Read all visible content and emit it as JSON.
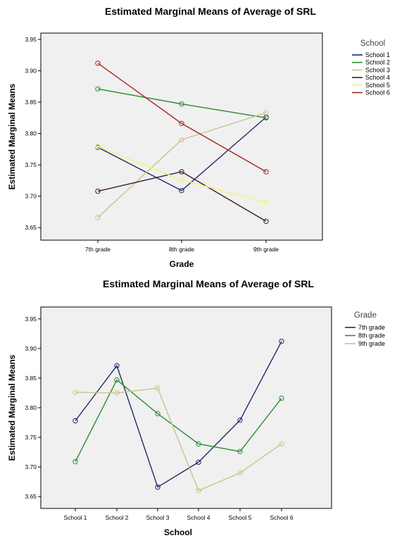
{
  "chart_data": [
    {
      "type": "line",
      "title": "Estimated Marginal Means of Average of SRL",
      "xlabel": "Grade",
      "ylabel": "Estimated Marginal Means",
      "categories": [
        "7th grade",
        "8th grade",
        "9th grade"
      ],
      "ylim": [
        3.63,
        3.96
      ],
      "yticks": [
        "3.65",
        "3.70",
        "3.75",
        "3.80",
        "3.85",
        "3.90",
        "3.95"
      ],
      "grid": false,
      "legend_title": "School",
      "legend_position": "right",
      "series": [
        {
          "name": "School 1",
          "color": "#1f2a6b",
          "values": [
            3.778,
            3.709,
            3.826
          ]
        },
        {
          "name": "School 2",
          "color": "#2e8b2e",
          "values": [
            3.871,
            3.847,
            3.825
          ]
        },
        {
          "name": "School 3",
          "color": "#c8c48c",
          "values": [
            3.666,
            3.79,
            3.833
          ]
        },
        {
          "name": "School 4",
          "color": "#3b1a3b",
          "values": [
            3.708,
            3.739,
            3.66
          ]
        },
        {
          "name": "School 5",
          "color": "#f5f56e",
          "values": [
            3.779,
            3.726,
            3.69
          ]
        },
        {
          "name": "School 6",
          "color": "#a82424",
          "values": [
            3.912,
            3.816,
            3.739
          ]
        }
      ]
    },
    {
      "type": "line",
      "title": "Estimated Marginal Means of Average of SRL",
      "xlabel": "School",
      "ylabel": "Estimated Marginal Means",
      "categories": [
        "School 1",
        "School 2",
        "School 3",
        "School 4",
        "School 5",
        "School 6"
      ],
      "ylim": [
        3.63,
        3.97
      ],
      "yticks": [
        "3.65",
        "3.70",
        "3.75",
        "3.80",
        "3.85",
        "3.90",
        "3.95"
      ],
      "grid": false,
      "legend_title": "Grade",
      "legend_position": "right",
      "series": [
        {
          "name": "7th grade",
          "color": "#1f2a6b",
          "values": [
            3.778,
            3.871,
            3.666,
            3.708,
            3.779,
            3.912
          ]
        },
        {
          "name": "8th grade",
          "color": "#2e8b2e",
          "values": [
            3.709,
            3.847,
            3.79,
            3.739,
            3.726,
            3.816
          ]
        },
        {
          "name": "9th grade",
          "color": "#c8c48c",
          "values": [
            3.826,
            3.825,
            3.833,
            3.66,
            3.69,
            3.739
          ]
        }
      ]
    }
  ]
}
